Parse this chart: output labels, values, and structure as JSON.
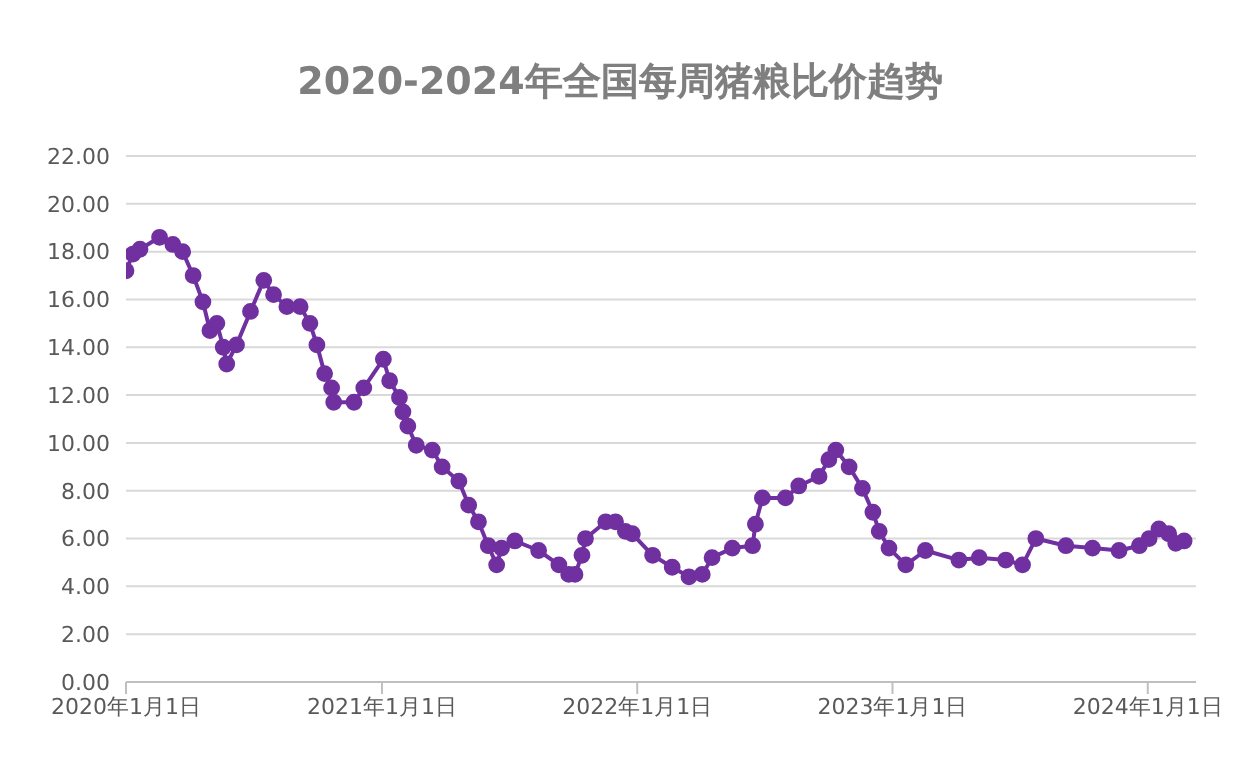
{
  "chart_data": {
    "type": "line",
    "title": "2020-2024年全国每周猪粮比价趋势",
    "x": [
      "2020-01-01",
      "2020-01-11",
      "2020-01-21",
      "2020-02-18",
      "2020-03-08",
      "2020-03-22",
      "2020-04-06",
      "2020-04-20",
      "2020-04-30",
      "2020-05-10",
      "2020-05-19",
      "2020-05-24",
      "2020-06-07",
      "2020-06-27",
      "2020-07-16",
      "2020-07-30",
      "2020-08-18",
      "2020-09-06",
      "2020-09-20",
      "2020-09-30",
      "2020-10-11",
      "2020-10-21",
      "2020-10-24",
      "2020-11-22",
      "2020-12-06",
      "2021-01-03",
      "2021-01-12",
      "2021-01-26",
      "2021-01-31",
      "2021-02-07",
      "2021-02-19",
      "2021-03-14",
      "2021-03-28",
      "2021-04-21",
      "2021-05-05",
      "2021-05-19",
      "2021-06-02",
      "2021-06-14",
      "2021-06-21",
      "2021-07-10",
      "2021-08-13",
      "2021-09-11",
      "2021-09-25",
      "2021-10-04",
      "2021-10-14",
      "2021-10-19",
      "2021-11-17",
      "2021-12-01",
      "2021-12-15",
      "2021-12-25",
      "2022-01-23",
      "2022-02-20",
      "2022-03-16",
      "2022-04-04",
      "2022-04-18",
      "2022-05-17",
      "2022-06-15",
      "2022-06-19",
      "2022-06-29",
      "2022-08-01",
      "2022-08-20",
      "2022-09-18",
      "2022-10-02",
      "2022-10-12",
      "2022-10-31",
      "2022-11-19",
      "2022-12-04",
      "2022-12-13",
      "2022-12-27",
      "2023-01-20",
      "2023-02-17",
      "2023-04-06",
      "2023-05-05",
      "2023-06-12",
      "2023-07-06",
      "2023-07-25",
      "2023-09-06",
      "2023-10-14",
      "2023-11-21",
      "2023-12-20",
      "2024-01-03",
      "2024-01-17",
      "2024-01-31",
      "2024-02-10",
      "2024-02-22"
    ],
    "series": [
      {
        "color": "#7030a0",
        "values": [
          17.2,
          17.9,
          18.1,
          18.6,
          18.3,
          18.0,
          17.0,
          15.9,
          14.7,
          15.0,
          14.0,
          13.3,
          14.1,
          15.5,
          16.8,
          16.2,
          15.7,
          15.7,
          15.0,
          14.1,
          12.9,
          12.3,
          11.7,
          11.7,
          12.3,
          13.5,
          12.6,
          11.9,
          11.3,
          10.7,
          9.9,
          9.7,
          9.0,
          8.4,
          7.4,
          6.7,
          5.7,
          4.9,
          5.6,
          5.9,
          5.5,
          4.9,
          4.5,
          4.5,
          5.3,
          6.0,
          6.7,
          6.7,
          6.3,
          6.2,
          5.3,
          4.8,
          4.4,
          4.5,
          5.2,
          5.6,
          5.7,
          6.6,
          7.7,
          7.7,
          8.2,
          8.6,
          9.3,
          9.7,
          9.0,
          8.1,
          7.1,
          6.3,
          5.6,
          4.9,
          5.5,
          5.1,
          5.2,
          5.1,
          4.9,
          6.0,
          5.7,
          5.6,
          5.5,
          5.7,
          6.0,
          6.4,
          6.2,
          5.8,
          5.9
        ]
      }
    ],
    "xlim": [
      "2020-01-01",
      "2024-03-10"
    ],
    "xticks": [
      {
        "value": "2020-01-01",
        "label": "2020年1月1日"
      },
      {
        "value": "2021-01-01",
        "label": "2021年1月1日"
      },
      {
        "value": "2022-01-01",
        "label": "2022年1月1日"
      },
      {
        "value": "2023-01-01",
        "label": "2023年1月1日"
      },
      {
        "value": "2024-01-01",
        "label": "2024年1月1日"
      }
    ],
    "ylim": [
      0,
      22
    ],
    "yticks": [
      {
        "value": 0,
        "label": "0.00"
      },
      {
        "value": 2,
        "label": "2.00"
      },
      {
        "value": 4,
        "label": "4.00"
      },
      {
        "value": 6,
        "label": "6.00"
      },
      {
        "value": 8,
        "label": "8.00"
      },
      {
        "value": 10,
        "label": "10.00"
      },
      {
        "value": 12,
        "label": "12.00"
      },
      {
        "value": 14,
        "label": "14.00"
      },
      {
        "value": 16,
        "label": "16.00"
      },
      {
        "value": 18,
        "label": "18.00"
      },
      {
        "value": 20,
        "label": "20.00"
      },
      {
        "value": 22,
        "label": "22.00"
      }
    ],
    "grid": "y",
    "marker": "circle",
    "legend": false
  }
}
